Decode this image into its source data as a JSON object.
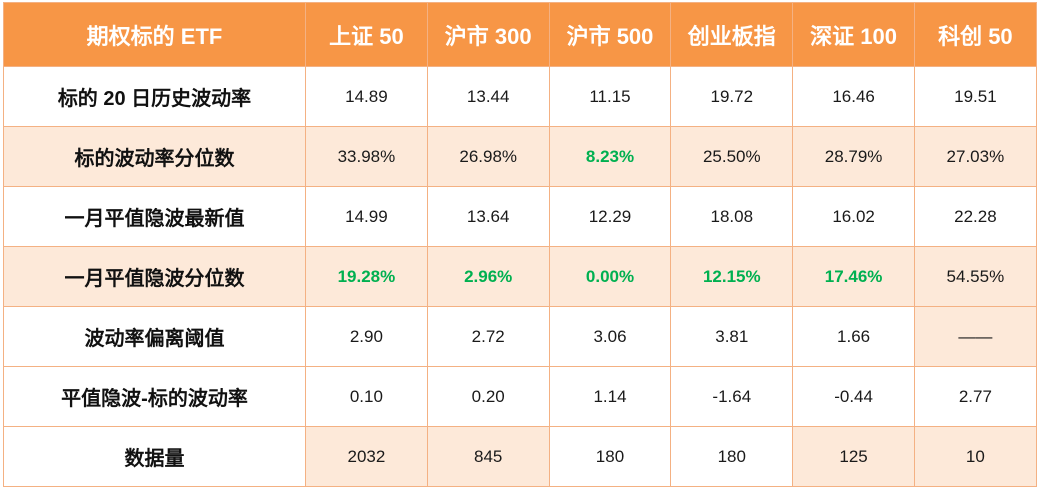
{
  "table": {
    "header": [
      "期权标的 ETF",
      "上证 50",
      "沪市 300",
      "沪市 500",
      "创业板指",
      "深证 100",
      "科创 50"
    ],
    "rows": [
      {
        "label": "标的 20 日历史波动率",
        "cells": [
          "14.89",
          "13.44",
          "11.15",
          "19.72",
          "16.46",
          "19.51"
        ]
      },
      {
        "label": "标的波动率分位数",
        "cells": [
          "33.98%",
          "26.98%",
          "8.23%",
          "25.50%",
          "28.79%",
          "27.03%"
        ]
      },
      {
        "label": "一月平值隐波最新值",
        "cells": [
          "14.99",
          "13.64",
          "12.29",
          "18.08",
          "16.02",
          "22.28"
        ]
      },
      {
        "label": "一月平值隐波分位数",
        "cells": [
          "19.28%",
          "2.96%",
          "0.00%",
          "12.15%",
          "17.46%",
          "54.55%"
        ]
      },
      {
        "label": "波动率偏离阈值",
        "cells": [
          "2.90",
          "2.72",
          "3.06",
          "3.81",
          "1.66",
          "——"
        ]
      },
      {
        "label": "平值隐波-标的波动率",
        "cells": [
          "0.10",
          "0.20",
          "1.14",
          "-1.64",
          "-0.44",
          "2.77"
        ]
      },
      {
        "label": "数据量",
        "cells": [
          "2032",
          "845",
          "180",
          "180",
          "125",
          "10"
        ]
      }
    ]
  },
  "colors": {
    "header_bg": "#f79646",
    "header_text": "#ffffff",
    "shade_bg": "#fde9d9",
    "border": "#f4b183",
    "highlight_green": "#00b050"
  }
}
